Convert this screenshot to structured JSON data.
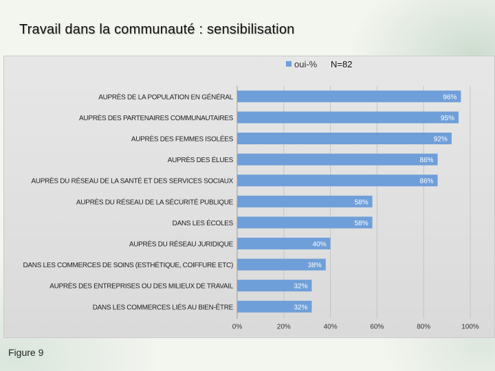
{
  "slide": {
    "title": "Travail dans la communauté : sensibilisation",
    "caption": "Figure 9"
  },
  "chart_data": {
    "type": "bar",
    "orientation": "horizontal",
    "categories": [
      "AUPRÈS DE LA POPULATION EN GÉNÉRAL",
      "AUPRÈS DES PARTENAIRES COMMUNAUTAIRES",
      "AUPRÈS DES FEMMES ISOLÉES",
      "AUPRÈS DES ÉLUES",
      "AUPRÈS DU RÉSEAU DE LA SANTÉ ET DES SERVICES SOCIAUX",
      "AUPRÈS DU RÉSEAU DE LA SÉCURITÉ PUBLIQUE",
      "DANS LES ÉCOLES",
      "AUPRÈS DU RÉSEAU JURIDIQUE",
      "DANS LES COMMERCES DE SOINS (ESTHÉTIQUE, COIFFURE ETC)",
      "AUPRÈS DES ENTREPRISES OU DES MILIEUX DE TRAVAIL",
      "DANS LES COMMERCES LIÉS AU BIEN-ÊTRE"
    ],
    "series": [
      {
        "name": "oui-%",
        "values": [
          96,
          95,
          92,
          86,
          86,
          58,
          58,
          40,
          38,
          32,
          32
        ],
        "color": "#6f9fd8"
      }
    ],
    "data_labels": [
      "96%",
      "95%",
      "92%",
      "86%",
      "86%",
      "58%",
      "58%",
      "40%",
      "38%",
      "32%",
      "32%"
    ],
    "xticks": [
      "0%",
      "20%",
      "40%",
      "60%",
      "80%",
      "100%"
    ],
    "xlim": [
      0,
      100
    ],
    "legend": {
      "position": "top",
      "label": "oui-%"
    },
    "annotation": "N=82",
    "grid": true
  }
}
